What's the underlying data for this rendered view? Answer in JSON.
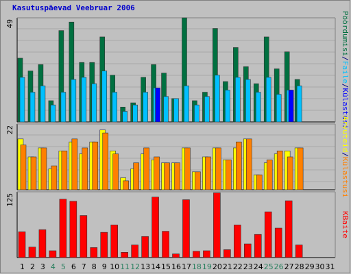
{
  "chart_data": [
    {
      "type": "bar",
      "title": "Kasutuspäevad Veebruar 2006",
      "ylabel_max": "49",
      "ylim": [
        0,
        49
      ],
      "x": [
        "1",
        "2",
        "3",
        "4",
        "5",
        "6",
        "7",
        "8",
        "9",
        "10",
        "11",
        "12",
        "13",
        "14",
        "15",
        "16",
        "17",
        "18",
        "19",
        "20",
        "21",
        "22",
        "23",
        "24",
        "25",
        "26",
        "27",
        "28",
        "29",
        "30",
        "31"
      ],
      "legend": [
        "Pöördumisi",
        "/",
        "Faile",
        "/",
        "Külastusi"
      ],
      "series": [
        {
          "name": "Pöördumisi",
          "color": "#007040",
          "values": [
            30,
            24,
            27,
            10,
            43,
            47,
            28,
            28,
            40,
            22,
            7,
            9,
            21,
            27,
            23,
            11,
            49,
            10,
            14,
            44,
            19,
            35,
            26,
            18,
            40,
            25,
            33,
            20,
            0,
            0,
            0
          ]
        },
        {
          "name": "Faile",
          "color": "#00C0FF",
          "values": [
            21,
            14,
            17,
            8,
            14,
            20,
            21,
            18,
            24,
            14,
            5,
            8,
            14,
            16,
            12,
            11,
            17,
            8,
            12,
            22,
            15,
            21,
            20,
            14,
            21,
            13,
            15,
            17,
            0,
            0,
            0
          ]
        },
        {
          "name": "Külastusi",
          "color": "#0000FF",
          "values": [
            0,
            0,
            0,
            0,
            0,
            0,
            0,
            0,
            0,
            0,
            0,
            0,
            0,
            16,
            0,
            0,
            0,
            0,
            0,
            0,
            0,
            0,
            0,
            0,
            0,
            0,
            15,
            0,
            0,
            0,
            0
          ]
        }
      ]
    },
    {
      "type": "bar",
      "ylabel_max": "22",
      "ylim": [
        0,
        22
      ],
      "legend": [
        "Arvuteid",
        "/",
        "Külastusi"
      ],
      "series": [
        {
          "name": "Arvuteid",
          "color": "#FFFF00",
          "values": [
            17,
            11,
            14,
            7,
            13,
            16,
            12,
            16,
            20,
            13,
            4,
            7,
            12,
            10,
            9,
            9,
            14,
            6,
            11,
            14,
            10,
            14,
            17,
            5,
            9,
            12,
            13,
            14,
            0,
            0,
            0
          ]
        },
        {
          "name": "Külastusi",
          "color": "#FF8000",
          "values": [
            15,
            11,
            14,
            8,
            13,
            17,
            14,
            16,
            19,
            12,
            3,
            9,
            14,
            11,
            9,
            9,
            14,
            6,
            11,
            14,
            10,
            16,
            17,
            5,
            10,
            13,
            11,
            14,
            0,
            0,
            0
          ]
        }
      ]
    },
    {
      "type": "bar",
      "ylabel_max": "125",
      "ylim": [
        0,
        125
      ],
      "legend": [
        "KBaite"
      ],
      "series": [
        {
          "name": "KBaite",
          "color": "#FF0000",
          "values": [
            49,
            20,
            53,
            13,
            111,
            107,
            80,
            19,
            48,
            62,
            10,
            24,
            40,
            115,
            50,
            7,
            110,
            12,
            13,
            123,
            15,
            62,
            26,
            44,
            87,
            56,
            108,
            24,
            0,
            0,
            0
          ]
        }
      ]
    }
  ],
  "colors": {
    "panel_bg": "#C0C0C0",
    "border": "#808080",
    "title": "#0000CC",
    "weekend_day": "#2B8060",
    "weekday": "#000000",
    "slash": "#000080",
    "axis_line": "#000000"
  },
  "weekend_days": [
    4,
    5,
    11,
    12,
    18,
    19,
    25,
    26
  ]
}
